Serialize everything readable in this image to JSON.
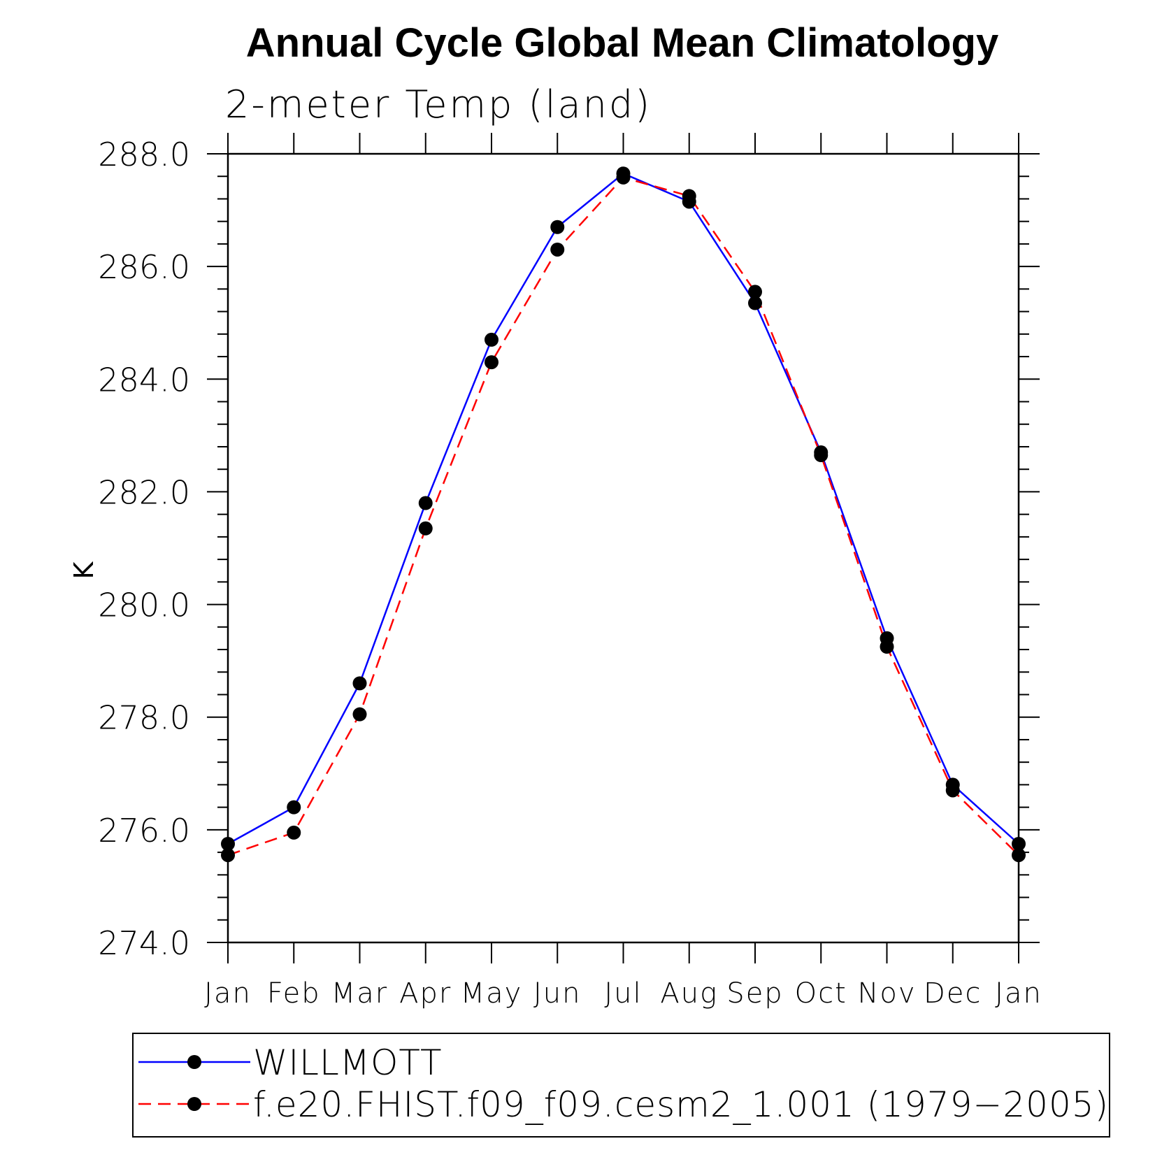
{
  "chart_data": {
    "type": "line",
    "title": "Annual Cycle Global Mean Climatology",
    "subtitle": "2-meter Temp (land)",
    "ylabel": "K",
    "xlabel": "",
    "categories": [
      "Jan",
      "Feb",
      "Mar",
      "Apr",
      "May",
      "Jun",
      "Jul",
      "Aug",
      "Sep",
      "Oct",
      "Nov",
      "Dec",
      "Jan"
    ],
    "ylim": [
      274.0,
      288.0
    ],
    "yticks": [
      "274.0",
      "276.0",
      "278.0",
      "280.0",
      "282.0",
      "284.0",
      "286.0",
      "288.0"
    ],
    "grid": false,
    "legend_position": "bottom",
    "series": [
      {
        "name": "WILLMOTT",
        "color": "#0000ff",
        "dash": "solid",
        "values": [
          275.75,
          276.4,
          278.6,
          281.8,
          284.7,
          286.7,
          287.65,
          287.15,
          285.35,
          282.7,
          279.4,
          276.8,
          275.75
        ]
      },
      {
        "name": "f.e20.FHIST.f09_f09.cesm2_1.001 (1979−2005)",
        "color": "#ff0000",
        "dash": "dashed",
        "values": [
          275.55,
          275.95,
          278.05,
          281.35,
          284.3,
          286.3,
          287.58,
          287.25,
          285.55,
          282.65,
          279.25,
          276.7,
          275.55
        ]
      }
    ]
  }
}
